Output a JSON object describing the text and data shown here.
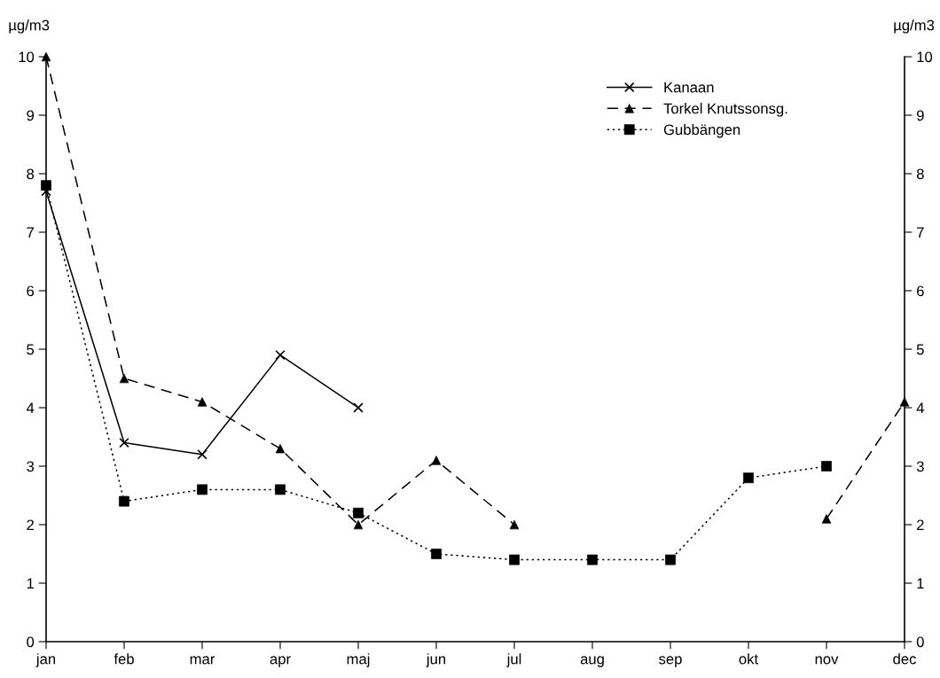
{
  "chart_data": {
    "type": "line",
    "categories": [
      "jan",
      "feb",
      "mar",
      "apr",
      "maj",
      "jun",
      "jul",
      "aug",
      "sep",
      "okt",
      "nov",
      "dec"
    ],
    "ylabel": "µg/m3",
    "y2label": "µg/m3",
    "ylim": [
      0,
      10
    ],
    "yticks": [
      0,
      1,
      2,
      3,
      4,
      5,
      6,
      7,
      8,
      9,
      10
    ],
    "y2lim": [
      0,
      10
    ],
    "y2ticks": [
      0,
      1,
      2,
      3,
      4,
      5,
      6,
      7,
      8,
      9,
      10
    ],
    "grid": false,
    "legend": "top right",
    "series": [
      {
        "name": "Kanaan",
        "color": "#000000",
        "marker": "cross",
        "line_style": "solid",
        "values": [
          7.7,
          3.4,
          3.2,
          4.9,
          4.0,
          null,
          null,
          null,
          null,
          null,
          null,
          null
        ]
      },
      {
        "name": "Torkel Knutssonsg.",
        "color": "#000000",
        "marker": "triangle",
        "line_style": "dashed",
        "values": [
          10,
          4.5,
          4.1,
          3.3,
          2.0,
          3.1,
          2.0,
          null,
          null,
          null,
          2.1,
          4.1
        ]
      },
      {
        "name": "Gubbängen",
        "color": "#000000",
        "marker": "square",
        "line_style": "dotted",
        "values": [
          7.8,
          2.4,
          2.6,
          2.6,
          2.2,
          1.5,
          1.4,
          1.4,
          1.4,
          2.8,
          3.0,
          null
        ]
      }
    ]
  }
}
